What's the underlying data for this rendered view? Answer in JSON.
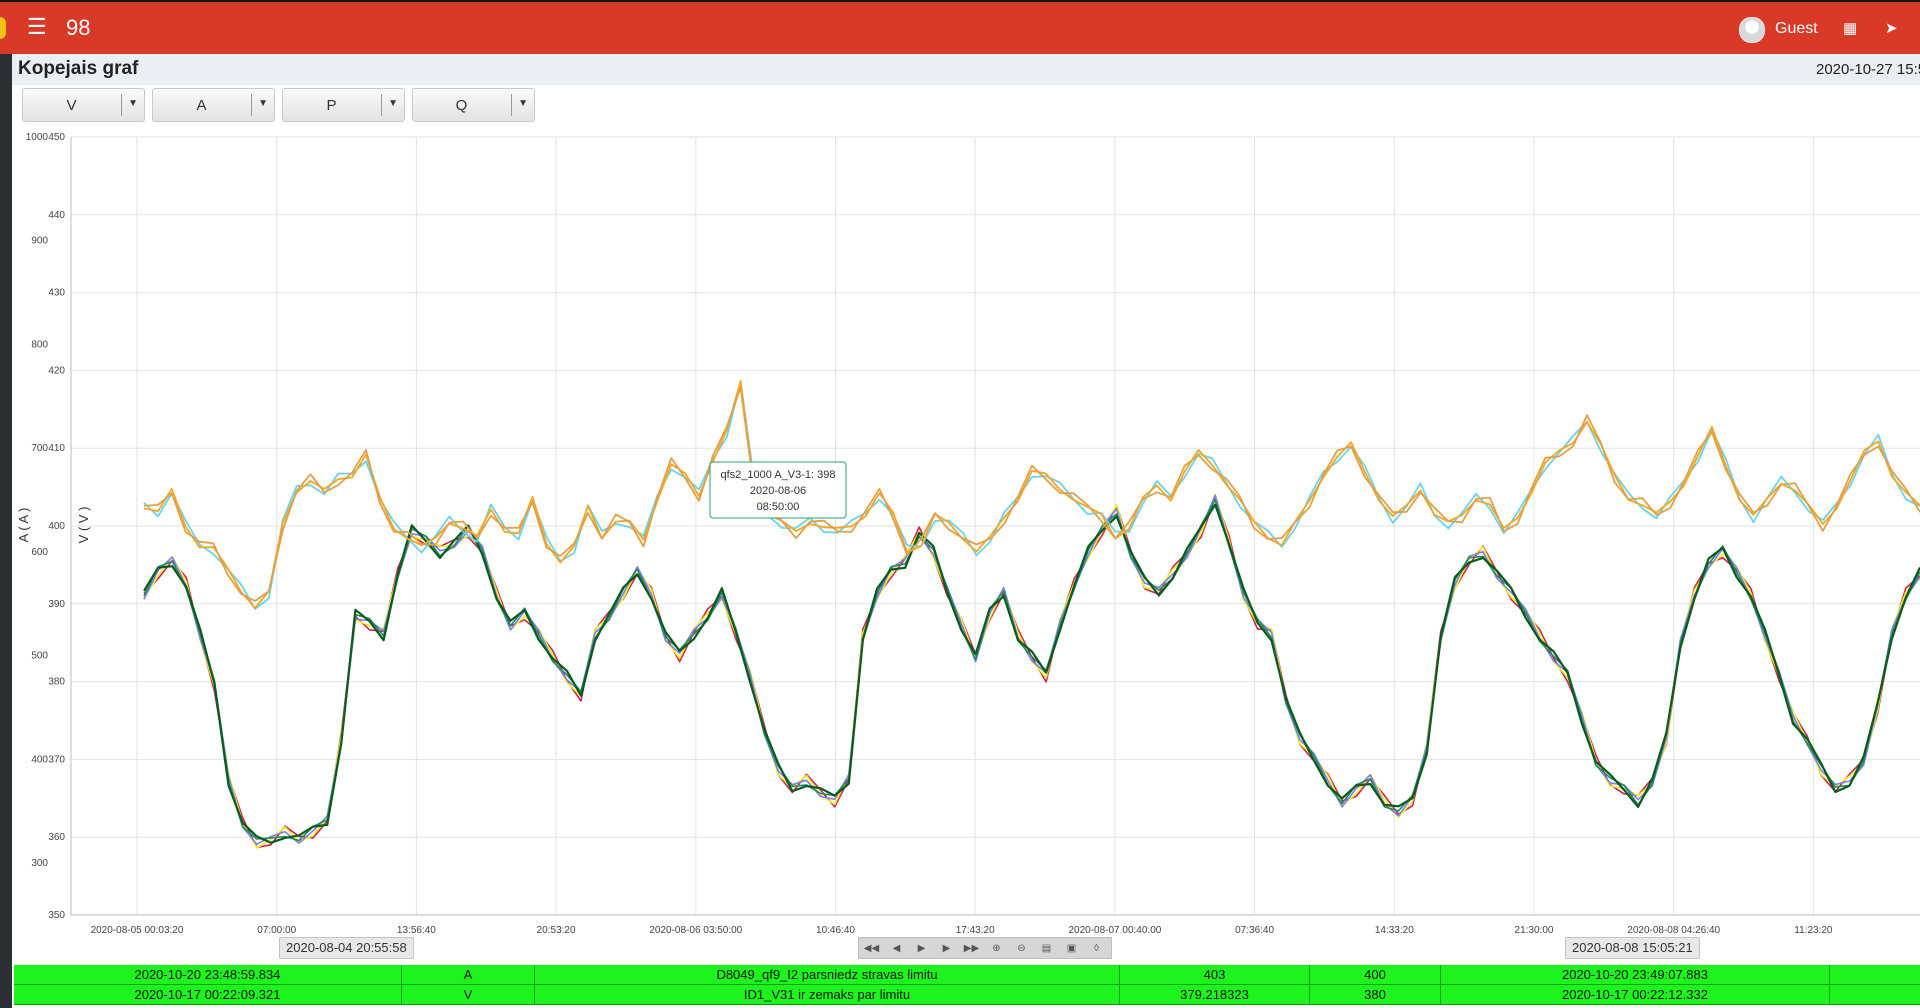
{
  "header": {
    "app_number": "98",
    "user": "Guest"
  },
  "page": {
    "title": "Kopejais graf",
    "datetime": "2020-10-27 15:5"
  },
  "selectors": [
    {
      "label": "V"
    },
    {
      "label": "A"
    },
    {
      "label": "P"
    },
    {
      "label": "Q"
    }
  ],
  "colors": {
    "topbar": "#d93a27",
    "alarm_row": "#1df31d"
  },
  "chart_data": {
    "type": "line",
    "y_left": {
      "label": "A ( A )",
      "ticks": [
        "1000",
        "900",
        "800",
        "700",
        "600",
        "500",
        "400",
        "300"
      ],
      "range": [
        250,
        1000
      ]
    },
    "y_right": {
      "label": "V ( V )",
      "ticks": [
        "450",
        "440",
        "430",
        "420",
        "410",
        "400",
        "390",
        "380",
        "370",
        "360",
        "350"
      ],
      "range": [
        350,
        450
      ]
    },
    "x_ticks": [
      "2020-08-05 00:03:20",
      "07:00:00",
      "13:56:40",
      "20:53:20",
      "2020-08-06 03:50:00",
      "10:46:40",
      "17:43:20",
      "2020-08-07 00:40:00",
      "07:36:40",
      "14:33:20",
      "21:30:00",
      "2020-08-08 04:26:40",
      "11:23:20"
    ],
    "grid": true,
    "tooltip": {
      "series": "qfs2_1000 A_V3-1: 398",
      "date": "2020-08-06",
      "time": "08:50:00"
    },
    "voltage_series_colors": [
      "#67d4ee",
      "#f5a623",
      "#e3a046"
    ],
    "current_series_colors": [
      "#d42050",
      "#f2ef22",
      "#7f7fe8",
      "#1f8a6a",
      "#0a5c1a"
    ],
    "voltage_profile": [
      403,
      402,
      404,
      400,
      398,
      397,
      394,
      392,
      390,
      391,
      400,
      405,
      406,
      404,
      406,
      407,
      409,
      403,
      400,
      399,
      397,
      398,
      401,
      400,
      398,
      402,
      400,
      399,
      403,
      398,
      396,
      397,
      402,
      399,
      401,
      400,
      398,
      404,
      408,
      406,
      404,
      409,
      412,
      418,
      405,
      402,
      400,
      399,
      401,
      400,
      399,
      400,
      402,
      404,
      401,
      397,
      398,
      401,
      400,
      399,
      397,
      398,
      401,
      404,
      407,
      406,
      405,
      404,
      402,
      401,
      399,
      400,
      403,
      405,
      404,
      407,
      409,
      408,
      406,
      403,
      400,
      399,
      398,
      400,
      403,
      407,
      409,
      410,
      407,
      404,
      401,
      402,
      405,
      402,
      400,
      401,
      404,
      403,
      399,
      401,
      405,
      408,
      409,
      411,
      414,
      410,
      406,
      404,
      403,
      401,
      403,
      406,
      409,
      412,
      408,
      404,
      401,
      403,
      406,
      405,
      402,
      400,
      403,
      406,
      409,
      411,
      407,
      404,
      402
    ],
    "current_profile": [
      560,
      580,
      590,
      570,
      520,
      470,
      380,
      340,
      320,
      320,
      330,
      325,
      330,
      340,
      420,
      540,
      530,
      520,
      580,
      620,
      610,
      600,
      610,
      620,
      600,
      560,
      530,
      540,
      520,
      500,
      480,
      460,
      520,
      540,
      560,
      580,
      560,
      520,
      500,
      520,
      540,
      560,
      520,
      480,
      430,
      390,
      370,
      380,
      370,
      360,
      380,
      520,
      560,
      580,
      590,
      620,
      600,
      560,
      530,
      500,
      540,
      560,
      520,
      500,
      480,
      530,
      570,
      600,
      620,
      640,
      600,
      570,
      560,
      580,
      600,
      620,
      650,
      610,
      560,
      530,
      520,
      460,
      420,
      400,
      380,
      360,
      370,
      380,
      360,
      350,
      360,
      410,
      520,
      570,
      590,
      600,
      580,
      560,
      540,
      520,
      500,
      480,
      440,
      400,
      380,
      370,
      360,
      380,
      420,
      510,
      560,
      590,
      600,
      580,
      560,
      520,
      480,
      440,
      420,
      390,
      370,
      380,
      400,
      450,
      520,
      560,
      580
    ]
  },
  "alarm_rows": [
    {
      "time": "2020-10-20 23:48:59.834",
      "type": "A",
      "message": "D8049_qf9_I2 parsniedz stravas limitu",
      "value": "403",
      "limit": "400",
      "time2": "2020-10-20 23:49:07.883"
    },
    {
      "time": "2020-10-17 00:22:09.321",
      "type": "V",
      "message": "ID1_V31 ir zemaks par limitu",
      "value": "379.218323",
      "limit": "380",
      "time2": "2020-10-17 00:22:12.332"
    }
  ],
  "range_start": "2020-08-04 20:55:58",
  "range_end": "2020-08-08 15:05:21"
}
